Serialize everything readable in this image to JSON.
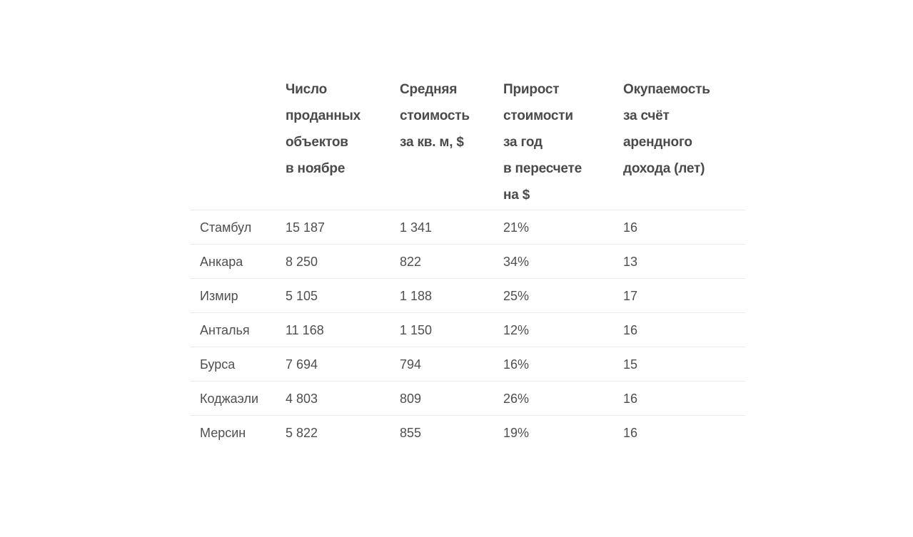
{
  "colors": {
    "page_background": "#ffffff",
    "header_text": "#4a4a4a",
    "body_text": "#4f4f4f",
    "divider": "#eaeaea"
  },
  "table": {
    "header": {
      "city": "",
      "sold": "Число\nпроданных\nобъектов\nв ноябре",
      "avg_price": "Средняя\nстоимость\nза кв. м, $",
      "growth": "Прирост\nстоимости\nза год\nв пересчете\nна $",
      "payback": "Окупаемость\nза счёт\nарендного\nдохода (лет)"
    },
    "rows": [
      {
        "city": "Стамбул",
        "sold": "15 187",
        "avg_price": "1 341",
        "growth": "21%",
        "payback": "16"
      },
      {
        "city": "Анкара",
        "sold": "8 250",
        "avg_price": "822",
        "growth": "34%",
        "payback": "13"
      },
      {
        "city": "Измир",
        "sold": "5 105",
        "avg_price": "1 188",
        "growth": "25%",
        "payback": "17"
      },
      {
        "city": "Анталья",
        "sold": "11 168",
        "avg_price": "1 150",
        "growth": "12%",
        "payback": "16"
      },
      {
        "city": "Бурса",
        "sold": "7 694",
        "avg_price": "794",
        "growth": "16%",
        "payback": "15"
      },
      {
        "city": "Коджаэли",
        "sold": "4 803",
        "avg_price": "809",
        "growth": "26%",
        "payback": "16"
      },
      {
        "city": "Мерсин",
        "sold": "5 822",
        "avg_price": "855",
        "growth": "19%",
        "payback": "16"
      }
    ]
  },
  "chart_data": {
    "type": "table",
    "title": "",
    "columns": [
      "",
      "Число проданных объектов в ноябре",
      "Средняя стоимость за кв. м, $",
      "Прирост стоимости за год в пересчете на $",
      "Окупаемость за счёт арендного дохода (лет)"
    ],
    "rows": [
      [
        "Стамбул",
        15187,
        1341,
        "21%",
        16
      ],
      [
        "Анкара",
        8250,
        822,
        "34%",
        13
      ],
      [
        "Измир",
        5105,
        1188,
        "25%",
        17
      ],
      [
        "Анталья",
        11168,
        1150,
        "12%",
        16
      ],
      [
        "Бурса",
        7694,
        794,
        "16%",
        15
      ],
      [
        "Коджаэли",
        4803,
        809,
        "26%",
        16
      ],
      [
        "Мерсин",
        5822,
        855,
        "19%",
        16
      ]
    ]
  }
}
